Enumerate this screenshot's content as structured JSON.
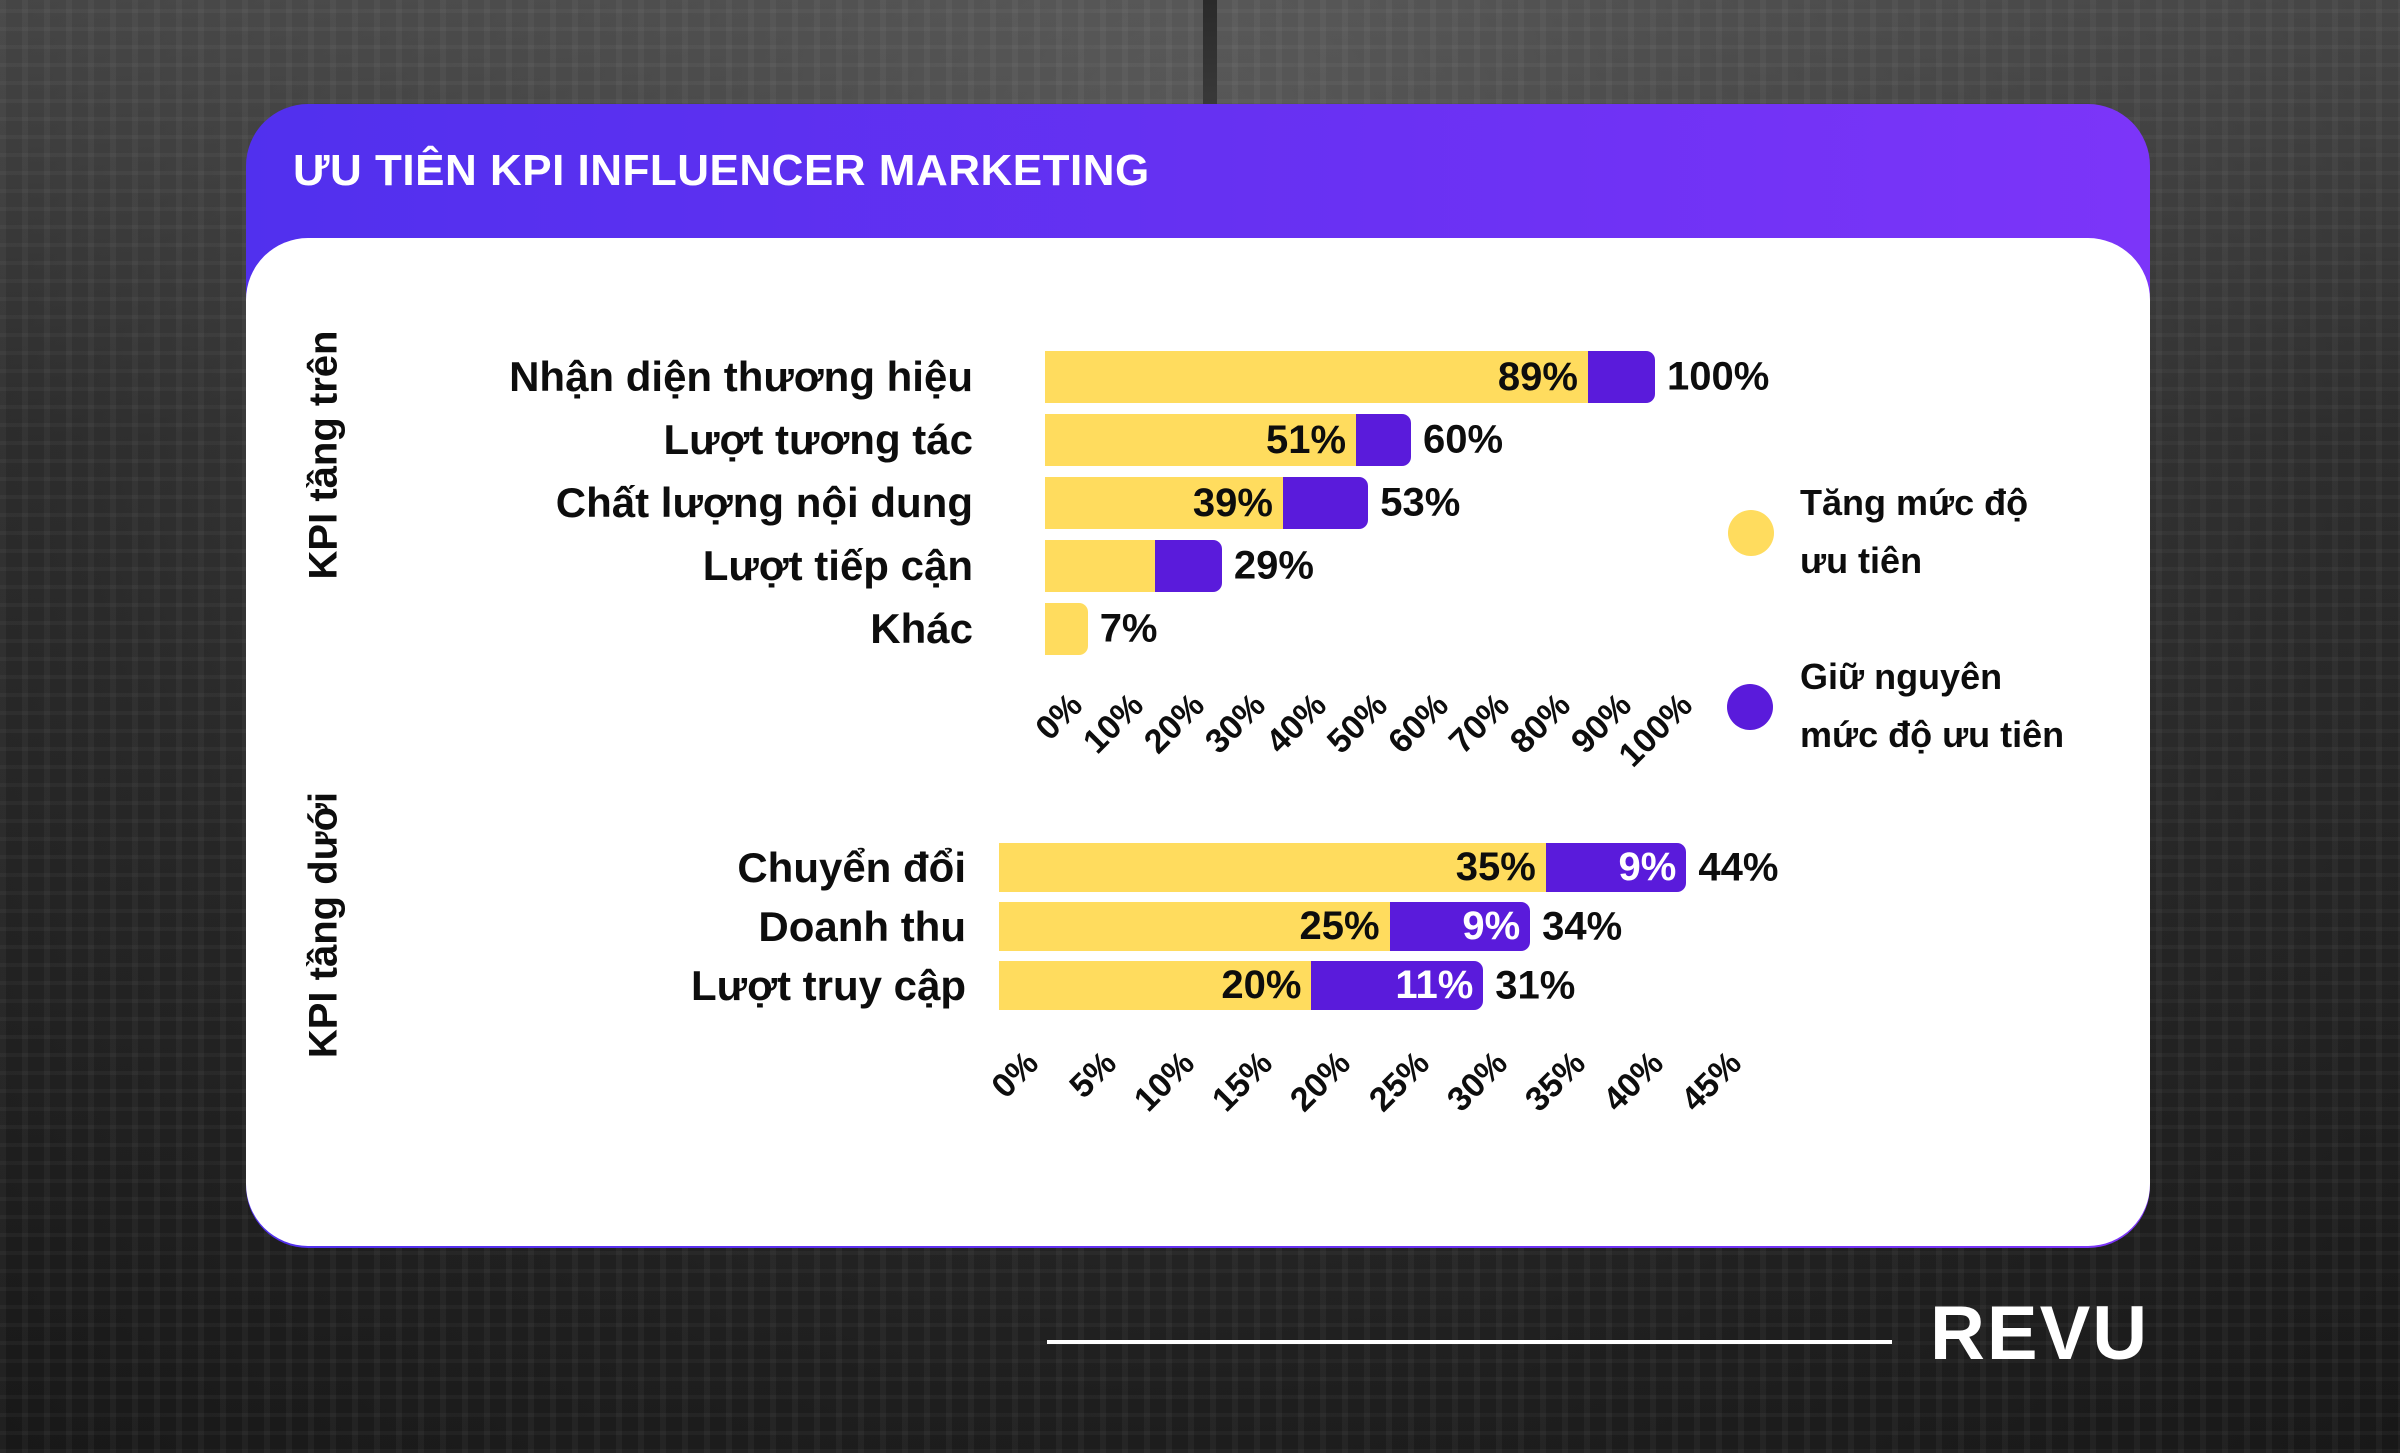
{
  "header": {
    "title": "ƯU TIÊN KPI INFLUENCER MARKETING"
  },
  "colors": {
    "increase": "#FFDC5E",
    "keep": "#5A1BDB",
    "header_start": "#5130EE",
    "header_end": "#7C35F9"
  },
  "legend": {
    "increase": "Tăng mức độ ưu tiên",
    "increase_line1": "Tăng mức độ",
    "increase_line2": "ưu tiên",
    "keep": "Giữ nguyên mức độ ưu tiên",
    "keep_line1": "Giữ nguyên",
    "keep_line2": "mức độ ưu tiên"
  },
  "footer": {
    "logo": "REVU"
  },
  "chart_data": [
    {
      "type": "bar",
      "orientation": "horizontal",
      "stacked": true,
      "title": "KPI tầng trên",
      "ylabel": "KPI tầng trên",
      "categories": [
        "Nhận diện thương hiệu",
        "Lượt tương tác",
        "Chất lượng nội dung",
        "Lượt tiếp cận",
        "Khác"
      ],
      "series": [
        {
          "name": "Tăng mức độ ưu tiên",
          "values": [
            89,
            51,
            39,
            18,
            7
          ],
          "labels": [
            "89%",
            "51%",
            "39%",
            "",
            ""
          ]
        },
        {
          "name": "Giữ nguyên mức độ ưu tiên",
          "values": [
            11,
            9,
            14,
            11,
            0
          ],
          "labels": [
            "",
            "",
            "",
            "",
            ""
          ]
        }
      ],
      "totals": [
        100,
        60,
        53,
        29,
        7
      ],
      "total_labels": [
        "100%",
        "60%",
        "53%",
        "29%",
        "7%"
      ],
      "xlim": [
        0,
        100
      ],
      "xticks": [
        "0%",
        "10%",
        "20%",
        "30%",
        "40%",
        "50%",
        "60%",
        "70%",
        "80%",
        "90%",
        "100%"
      ],
      "grid": false,
      "legend_position": "right"
    },
    {
      "type": "bar",
      "orientation": "horizontal",
      "stacked": true,
      "title": "KPI tầng dưới",
      "ylabel": "KPI tầng dưới",
      "categories": [
        "Chuyển đổi",
        "Doanh thu",
        "Lượt truy cập"
      ],
      "series": [
        {
          "name": "Tăng mức độ ưu tiên",
          "values": [
            35,
            25,
            20
          ],
          "labels": [
            "35%",
            "25%",
            "20%"
          ]
        },
        {
          "name": "Giữ nguyên mức độ ưu tiên",
          "values": [
            9,
            9,
            11
          ],
          "labels": [
            "9%",
            "9%",
            "11%"
          ]
        }
      ],
      "totals": [
        44,
        34,
        31
      ],
      "total_labels": [
        "44%",
        "34%",
        "31%"
      ],
      "xlim": [
        0,
        45
      ],
      "xticks": [
        "0%",
        "5%",
        "10%",
        "15%",
        "20%",
        "25%",
        "30%",
        "35%",
        "40%",
        "45%"
      ],
      "grid": false,
      "legend_position": "right"
    }
  ]
}
